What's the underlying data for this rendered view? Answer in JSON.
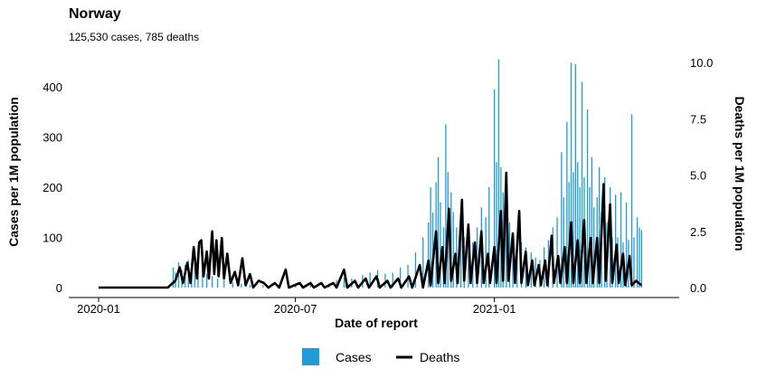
{
  "chart_data": {
    "type": "bar+line",
    "title": "Norway",
    "subtitle": "125,530 cases, 785 deaths",
    "xlabel": "Date of report",
    "ylabel_left": "Cases per 1M population",
    "ylabel_right": "Deaths per 1M population",
    "x_range": [
      "2020-01-01",
      "2021-05-31"
    ],
    "x_ticks": [
      "2020-01",
      "2020-07",
      "2021-01"
    ],
    "y_left_ticks": [
      "0",
      "100",
      "200",
      "300",
      "400"
    ],
    "y_left_lim": [
      0,
      450
    ],
    "y_right_ticks": [
      "0.0",
      "2.5",
      "5.0",
      "7.5",
      "10.0"
    ],
    "y_right_lim": [
      0,
      10
    ],
    "grid": false,
    "legend_position": "bottom",
    "series": [
      {
        "name": "Cases",
        "kind": "bar",
        "color": "#1f9bd7",
        "points": [
          [
            "2020-03-10",
            40
          ],
          [
            "2020-03-12",
            30
          ],
          [
            "2020-03-15",
            50
          ],
          [
            "2020-03-18",
            35
          ],
          [
            "2020-03-21",
            45
          ],
          [
            "2020-03-24",
            55
          ],
          [
            "2020-03-27",
            40
          ],
          [
            "2020-03-30",
            60
          ],
          [
            "2020-04-02",
            45
          ],
          [
            "2020-04-06",
            35
          ],
          [
            "2020-04-10",
            28
          ],
          [
            "2020-04-15",
            22
          ],
          [
            "2020-04-20",
            18
          ],
          [
            "2020-04-26",
            15
          ],
          [
            "2020-05-04",
            10
          ],
          [
            "2020-05-12",
            8
          ],
          [
            "2020-05-20",
            6
          ],
          [
            "2020-06-01",
            5
          ],
          [
            "2020-06-15",
            4
          ],
          [
            "2020-07-01",
            4
          ],
          [
            "2020-07-15",
            5
          ],
          [
            "2020-08-01",
            8
          ],
          [
            "2020-08-08",
            15
          ],
          [
            "2020-08-15",
            20
          ],
          [
            "2020-08-22",
            18
          ],
          [
            "2020-09-01",
            25
          ],
          [
            "2020-09-08",
            30
          ],
          [
            "2020-09-15",
            35
          ],
          [
            "2020-09-22",
            28
          ],
          [
            "2020-09-29",
            30
          ],
          [
            "2020-10-06",
            40
          ],
          [
            "2020-10-13",
            45
          ],
          [
            "2020-10-20",
            70
          ],
          [
            "2020-10-27",
            100
          ],
          [
            "2020-11-01",
            130
          ],
          [
            "2020-11-03",
            200
          ],
          [
            "2020-11-05",
            150
          ],
          [
            "2020-11-08",
            210
          ],
          [
            "2020-11-10",
            260
          ],
          [
            "2020-11-12",
            170
          ],
          [
            "2020-11-15",
            120
          ],
          [
            "2020-11-17",
            325
          ],
          [
            "2020-11-19",
            230
          ],
          [
            "2020-11-22",
            190
          ],
          [
            "2020-11-24",
            150
          ],
          [
            "2020-11-27",
            120
          ],
          [
            "2020-12-01",
            110
          ],
          [
            "2020-12-04",
            100
          ],
          [
            "2020-12-08",
            100
          ],
          [
            "2020-12-12",
            90
          ],
          [
            "2020-12-16",
            120
          ],
          [
            "2020-12-20",
            160
          ],
          [
            "2020-12-24",
            140
          ],
          [
            "2020-12-27",
            200
          ],
          [
            "2021-01-01",
            395
          ],
          [
            "2021-01-03",
            250
          ],
          [
            "2021-01-05",
            455
          ],
          [
            "2021-01-07",
            240
          ],
          [
            "2021-01-09",
            190
          ],
          [
            "2021-01-12",
            150
          ],
          [
            "2021-01-15",
            130
          ],
          [
            "2021-01-18",
            105
          ],
          [
            "2021-01-22",
            100
          ],
          [
            "2021-01-26",
            90
          ],
          [
            "2021-01-30",
            80
          ],
          [
            "2021-02-04",
            70
          ],
          [
            "2021-02-08",
            60
          ],
          [
            "2021-02-12",
            55
          ],
          [
            "2021-02-16",
            80
          ],
          [
            "2021-02-20",
            95
          ],
          [
            "2021-02-24",
            120
          ],
          [
            "2021-02-28",
            140
          ],
          [
            "2021-03-04",
            270
          ],
          [
            "2021-03-06",
            180
          ],
          [
            "2021-03-09",
            330
          ],
          [
            "2021-03-11",
            210
          ],
          [
            "2021-03-13",
            448
          ],
          [
            "2021-03-15",
            230
          ],
          [
            "2021-03-17",
            445
          ],
          [
            "2021-03-19",
            250
          ],
          [
            "2021-03-21",
            200
          ],
          [
            "2021-03-23",
            410
          ],
          [
            "2021-03-25",
            220
          ],
          [
            "2021-03-28",
            355
          ],
          [
            "2021-03-30",
            200
          ],
          [
            "2021-04-01",
            260
          ],
          [
            "2021-04-03",
            160
          ],
          [
            "2021-04-06",
            180
          ],
          [
            "2021-04-08",
            240
          ],
          [
            "2021-04-10",
            150
          ],
          [
            "2021-04-13",
            220
          ],
          [
            "2021-04-15",
            130
          ],
          [
            "2021-04-18",
            200
          ],
          [
            "2021-04-20",
            100
          ],
          [
            "2021-04-23",
            185
          ],
          [
            "2021-04-25",
            100
          ],
          [
            "2021-04-28",
            190
          ],
          [
            "2021-04-30",
            90
          ],
          [
            "2021-05-03",
            170
          ],
          [
            "2021-05-05",
            95
          ],
          [
            "2021-05-08",
            345
          ],
          [
            "2021-05-10",
            100
          ],
          [
            "2021-05-13",
            140
          ],
          [
            "2021-05-15",
            120
          ],
          [
            "2021-05-17",
            115
          ]
        ]
      },
      {
        "name": "Deaths",
        "kind": "line",
        "color": "#000000",
        "points": [
          [
            "2020-01-01",
            0
          ],
          [
            "2020-03-05",
            0
          ],
          [
            "2020-03-12",
            0.3
          ],
          [
            "2020-03-16",
            0.9
          ],
          [
            "2020-03-19",
            0.2
          ],
          [
            "2020-03-23",
            1.1
          ],
          [
            "2020-03-26",
            0.2
          ],
          [
            "2020-03-29",
            1.8
          ],
          [
            "2020-04-01",
            0.4
          ],
          [
            "2020-04-03",
            2.0
          ],
          [
            "2020-04-05",
            2.1
          ],
          [
            "2020-04-07",
            0.5
          ],
          [
            "2020-04-10",
            1.6
          ],
          [
            "2020-04-12",
            0.4
          ],
          [
            "2020-04-15",
            2.5
          ],
          [
            "2020-04-17",
            0.6
          ],
          [
            "2020-04-19",
            2.1
          ],
          [
            "2020-04-21",
            0.5
          ],
          [
            "2020-04-24",
            2.2
          ],
          [
            "2020-04-26",
            0.4
          ],
          [
            "2020-04-29",
            1.5
          ],
          [
            "2020-05-02",
            0.2
          ],
          [
            "2020-05-06",
            0.7
          ],
          [
            "2020-05-09",
            0.1
          ],
          [
            "2020-05-13",
            1.3
          ],
          [
            "2020-05-16",
            0.1
          ],
          [
            "2020-05-20",
            0.6
          ],
          [
            "2020-05-23",
            0
          ],
          [
            "2020-05-28",
            0.3
          ],
          [
            "2020-06-02",
            0.2
          ],
          [
            "2020-06-06",
            0
          ],
          [
            "2020-06-12",
            0.2
          ],
          [
            "2020-06-16",
            0
          ],
          [
            "2020-06-22",
            0.8
          ],
          [
            "2020-06-25",
            0
          ],
          [
            "2020-07-05",
            0.2
          ],
          [
            "2020-07-08",
            0
          ],
          [
            "2020-07-15",
            0.2
          ],
          [
            "2020-07-18",
            0
          ],
          [
            "2020-07-25",
            0.2
          ],
          [
            "2020-07-28",
            0
          ],
          [
            "2020-08-05",
            0.2
          ],
          [
            "2020-08-08",
            0
          ],
          [
            "2020-08-15",
            0.8
          ],
          [
            "2020-08-18",
            0
          ],
          [
            "2020-08-25",
            0.3
          ],
          [
            "2020-08-28",
            0
          ],
          [
            "2020-09-04",
            0.4
          ],
          [
            "2020-09-07",
            0
          ],
          [
            "2020-09-14",
            0.5
          ],
          [
            "2020-09-17",
            0
          ],
          [
            "2020-09-24",
            0.3
          ],
          [
            "2020-09-27",
            0
          ],
          [
            "2020-10-04",
            0.4
          ],
          [
            "2020-10-07",
            0
          ],
          [
            "2020-10-14",
            0.5
          ],
          [
            "2020-10-17",
            0
          ],
          [
            "2020-10-24",
            1.0
          ],
          [
            "2020-10-27",
            0
          ],
          [
            "2020-11-01",
            1.2
          ],
          [
            "2020-11-03",
            0.1
          ],
          [
            "2020-11-08",
            2.5
          ],
          [
            "2020-11-10",
            0.2
          ],
          [
            "2020-11-14",
            1.8
          ],
          [
            "2020-11-16",
            0.2
          ],
          [
            "2020-11-20",
            3.5
          ],
          [
            "2020-11-22",
            0.3
          ],
          [
            "2020-11-26",
            1.5
          ],
          [
            "2020-11-28",
            0.2
          ],
          [
            "2020-12-02",
            3.9
          ],
          [
            "2020-12-04",
            0.3
          ],
          [
            "2020-12-08",
            2.8
          ],
          [
            "2020-12-10",
            0.2
          ],
          [
            "2020-12-14",
            2.0
          ],
          [
            "2020-12-16",
            0.2
          ],
          [
            "2020-12-20",
            2.5
          ],
          [
            "2020-12-22",
            0.2
          ],
          [
            "2020-12-26",
            1.5
          ],
          [
            "2020-12-28",
            0.2
          ],
          [
            "2021-01-01",
            1.8
          ],
          [
            "2021-01-03",
            0.2
          ],
          [
            "2021-01-07",
            3.4
          ],
          [
            "2021-01-09",
            0.3
          ],
          [
            "2021-01-12",
            5.1
          ],
          [
            "2021-01-14",
            0.3
          ],
          [
            "2021-01-18",
            2.4
          ],
          [
            "2021-01-20",
            0.2
          ],
          [
            "2021-01-24",
            3.4
          ],
          [
            "2021-01-26",
            0.2
          ],
          [
            "2021-01-30",
            1.6
          ],
          [
            "2021-02-01",
            0.1
          ],
          [
            "2021-02-05",
            1.2
          ],
          [
            "2021-02-07",
            0.1
          ],
          [
            "2021-02-11",
            1.0
          ],
          [
            "2021-02-13",
            0.1
          ],
          [
            "2021-02-17",
            1.2
          ],
          [
            "2021-02-19",
            0.1
          ],
          [
            "2021-02-23",
            2.3
          ],
          [
            "2021-02-25",
            0.2
          ],
          [
            "2021-03-01",
            1.4
          ],
          [
            "2021-03-03",
            0.2
          ],
          [
            "2021-03-07",
            1.8
          ],
          [
            "2021-03-09",
            0.2
          ],
          [
            "2021-03-13",
            2.9
          ],
          [
            "2021-03-15",
            0.2
          ],
          [
            "2021-03-19",
            2.1
          ],
          [
            "2021-03-21",
            0.2
          ],
          [
            "2021-03-25",
            3.0
          ],
          [
            "2021-03-27",
            0.2
          ],
          [
            "2021-03-31",
            2.2
          ],
          [
            "2021-04-02",
            0.2
          ],
          [
            "2021-04-06",
            2.2
          ],
          [
            "2021-04-08",
            0.2
          ],
          [
            "2021-04-12",
            4.6
          ],
          [
            "2021-04-14",
            0.3
          ],
          [
            "2021-04-18",
            3.7
          ],
          [
            "2021-04-20",
            0.2
          ],
          [
            "2021-04-24",
            1.9
          ],
          [
            "2021-04-26",
            0.2
          ],
          [
            "2021-04-30",
            1.5
          ],
          [
            "2021-05-02",
            0.1
          ],
          [
            "2021-05-06",
            1.4
          ],
          [
            "2021-05-08",
            0.1
          ],
          [
            "2021-05-12",
            0.3
          ],
          [
            "2021-05-17",
            0.1
          ]
        ]
      }
    ]
  }
}
